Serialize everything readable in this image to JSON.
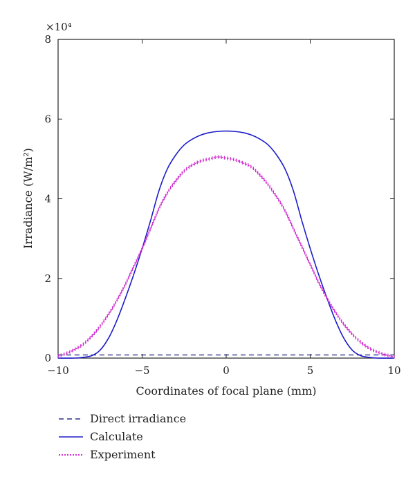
{
  "chart_data": {
    "type": "line",
    "title": "",
    "xlabel": "Coordinates of focal plane (mm)",
    "ylabel": "Irradiance (W/m²)",
    "y_multiplier": "×10⁴",
    "xlim": [
      -10,
      10
    ],
    "ylim": [
      0,
      8
    ],
    "x_ticks": [
      "−10",
      "−5",
      "0",
      "5",
      "10"
    ],
    "y_ticks": [
      "0",
      "2",
      "4",
      "6",
      "8"
    ],
    "grid": false,
    "legend_placement": "bottom-left-outside",
    "series": [
      {
        "name": "Direct irradiance",
        "style": "dashed",
        "color": "#2e2e8a",
        "x": [
          -10,
          10
        ],
        "y": [
          0.08,
          0.08
        ]
      },
      {
        "name": "Calculate",
        "style": "solid",
        "color": "#1c1cc8",
        "x": [
          -10,
          -9,
          -8.5,
          -8,
          -7.5,
          -7,
          -6.5,
          -6,
          -5.5,
          -5,
          -4.5,
          -4,
          -3.5,
          -3,
          -2.5,
          -2,
          -1.5,
          -1,
          -0.5,
          0,
          0.5,
          1,
          1.5,
          2,
          2.5,
          3,
          3.5,
          4,
          4.5,
          5,
          5.5,
          6,
          6.5,
          7,
          7.5,
          8,
          8.5,
          9,
          10
        ],
        "y": [
          0,
          0,
          0.02,
          0.06,
          0.2,
          0.5,
          0.95,
          1.5,
          2.1,
          2.75,
          3.45,
          4.2,
          4.75,
          5.1,
          5.35,
          5.5,
          5.6,
          5.66,
          5.69,
          5.7,
          5.69,
          5.66,
          5.6,
          5.5,
          5.35,
          5.1,
          4.75,
          4.2,
          3.45,
          2.75,
          2.1,
          1.5,
          0.95,
          0.5,
          0.2,
          0.06,
          0.02,
          0,
          0
        ]
      },
      {
        "name": "Experiment",
        "style": "dotted-markers",
        "color": "#d12fd1",
        "x": [
          -10,
          -9.5,
          -9,
          -8.5,
          -8,
          -7.5,
          -7,
          -6.5,
          -6,
          -5.5,
          -5,
          -4.5,
          -4,
          -3.5,
          -3,
          -2.5,
          -2,
          -1.5,
          -1,
          -0.5,
          0,
          0.5,
          1,
          1.5,
          2,
          2.5,
          3,
          3.5,
          4,
          4.5,
          5,
          5.5,
          6,
          6.5,
          7,
          7.5,
          8,
          8.5,
          9,
          9.5,
          10
        ],
        "y": [
          0.05,
          0.12,
          0.22,
          0.35,
          0.55,
          0.8,
          1.1,
          1.45,
          1.85,
          2.3,
          2.75,
          3.25,
          3.75,
          4.15,
          4.45,
          4.7,
          4.85,
          4.95,
          5.0,
          5.05,
          5.02,
          4.98,
          4.9,
          4.8,
          4.6,
          4.35,
          4.05,
          3.7,
          3.25,
          2.8,
          2.35,
          1.9,
          1.5,
          1.15,
          0.85,
          0.6,
          0.4,
          0.25,
          0.15,
          0.08,
          0.03
        ]
      }
    ]
  }
}
